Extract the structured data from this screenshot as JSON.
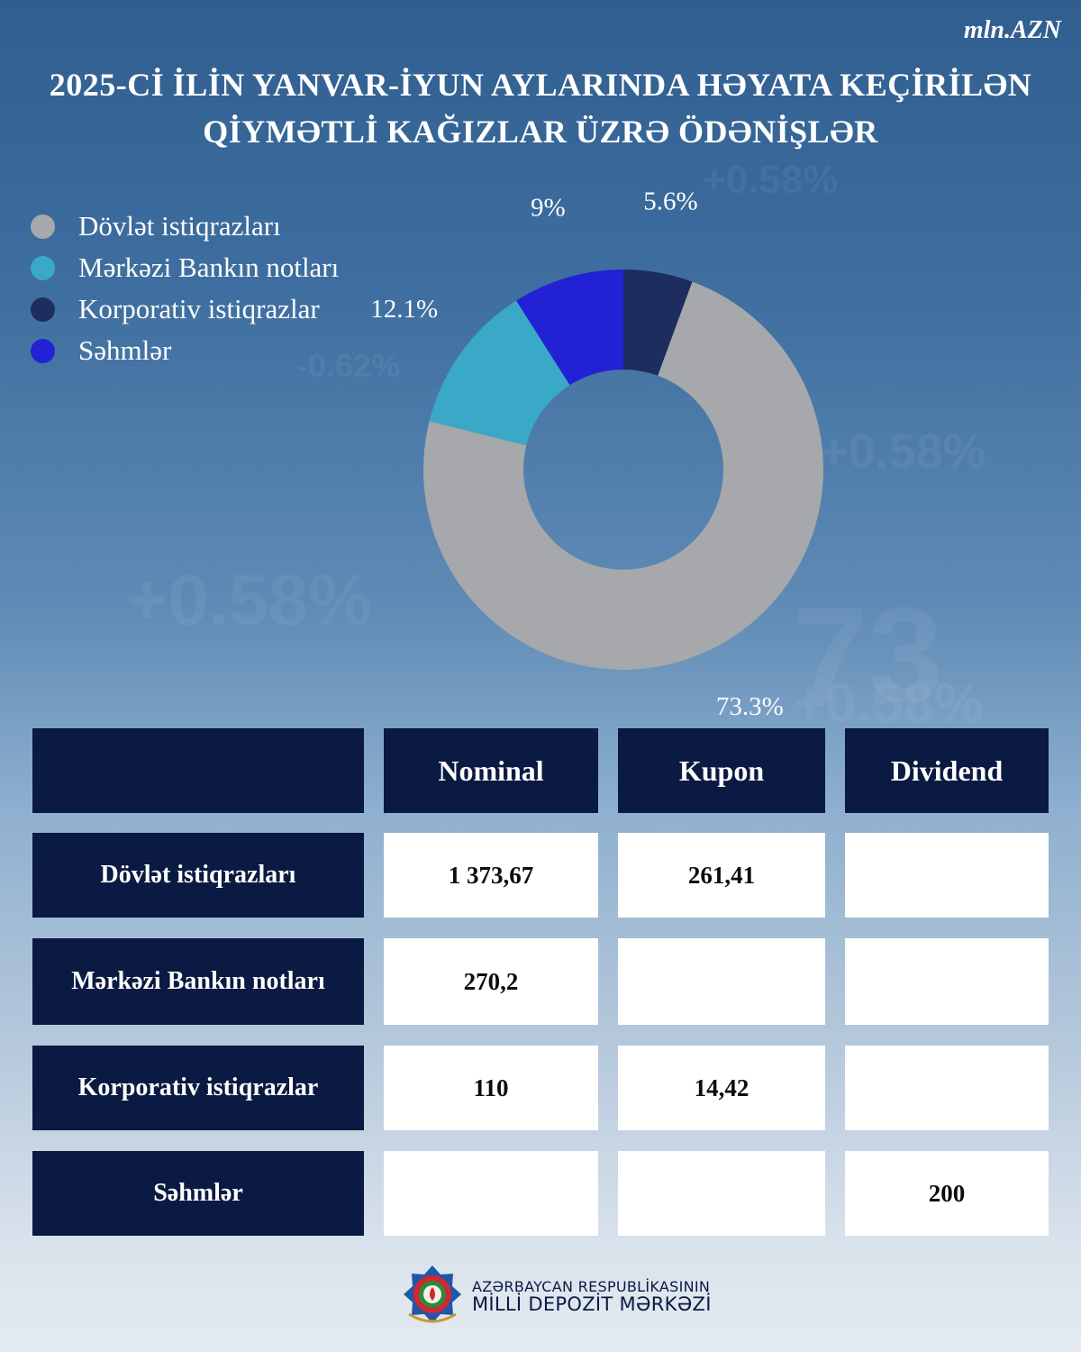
{
  "unit": "mln.AZN",
  "title": {
    "line1": "2025-Cİ İLİN YANVAR-İYUN AYLARINDA HƏYATA KEÇİRİLƏN",
    "line2": "QİYMƏTLİ KAĞIZLAR ÜZRƏ ÖDƏNİŞLƏR"
  },
  "chart_data": {
    "type": "pie",
    "title": "2025-Cİ İLİN YANVAR-İYUN AYLARINDA HƏYATA KEÇİRİLƏN QİYMƏTLİ KAĞIZLAR ÜZRƏ ÖDƏNİŞLƏR",
    "unit": "mln.AZN",
    "legend_position": "top-left",
    "donut": true,
    "categories": [
      "Dövlət istiqrazları",
      "Mərkəzi Bankın notları",
      "Korporativ istiqrazlar",
      "Səhmlər"
    ],
    "values": [
      73.3,
      12.1,
      5.6,
      9
    ],
    "labels": [
      "73.3%",
      "12.1%",
      "5.6%",
      "9%"
    ],
    "colors": [
      "#a6a8ab",
      "#3aa9c8",
      "#1c2d5e",
      "#2222d4"
    ]
  },
  "table": {
    "headers": [
      "",
      "Nominal",
      "Kupon",
      "Dividend"
    ],
    "rows": [
      {
        "label": "Dövlət istiqrazları",
        "nominal": "1 373,67",
        "kupon": "261,41",
        "dividend": ""
      },
      {
        "label": "Mərkəzi Bankın notları",
        "nominal": "270,2",
        "kupon": "",
        "dividend": ""
      },
      {
        "label": "Korporativ istiqrazlar",
        "nominal": "110",
        "kupon": "14,42",
        "dividend": ""
      },
      {
        "label": "Səhmlər",
        "nominal": "",
        "kupon": "",
        "dividend": "200"
      }
    ]
  },
  "footer": {
    "line1": "AZƏRBAYCAN RESPUBLİKASININ",
    "line2": "MİLLİ DEPOZİT MƏRKƏZİ",
    "logo_icon": "azerbaijan-emblem-icon"
  }
}
